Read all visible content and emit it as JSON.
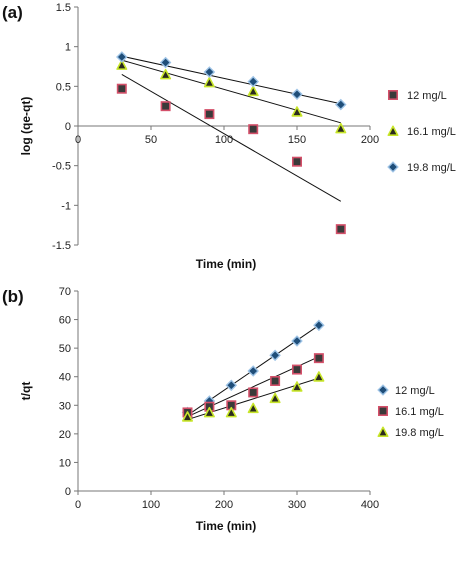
{
  "chart_data": [
    {
      "panel": "(a)",
      "type": "scatter",
      "xlabel": "Time (min)",
      "ylabel": "log (qe-qt)",
      "xlim": [
        0,
        200
      ],
      "ylim": [
        -1.5,
        1.5
      ],
      "xticks": [
        0,
        50,
        100,
        150,
        200
      ],
      "yticks": [
        1.5,
        1,
        0.5,
        0,
        -0.5,
        -1,
        -1.5
      ],
      "grid": false,
      "legend_position": "right",
      "series": [
        {
          "name": "12 mg/L",
          "marker": "square",
          "color": "#3a3a3a",
          "edge": "#d4506a",
          "points": [
            [
              30,
              0.47
            ],
            [
              60,
              0.25
            ],
            [
              90,
              0.15
            ],
            [
              120,
              -0.04
            ],
            [
              150,
              -0.45
            ],
            [
              180,
              -1.3
            ]
          ],
          "trend": [
            [
              30,
              0.65
            ],
            [
              180,
              -0.95
            ]
          ]
        },
        {
          "name": "16.1 mg/L",
          "marker": "triangle",
          "color": "#2b2b1e",
          "edge": "#c8e62a",
          "points": [
            [
              30,
              0.77
            ],
            [
              60,
              0.65
            ],
            [
              90,
              0.55
            ],
            [
              120,
              0.44
            ],
            [
              150,
              0.18
            ],
            [
              180,
              -0.03
            ]
          ],
          "trend": [
            [
              30,
              0.83
            ],
            [
              180,
              0.04
            ]
          ]
        },
        {
          "name": "19.8 mg/L",
          "marker": "diamond",
          "color": "#1f4e79",
          "edge": "#9dc3e6",
          "points": [
            [
              30,
              0.87
            ],
            [
              60,
              0.8
            ],
            [
              90,
              0.68
            ],
            [
              120,
              0.56
            ],
            [
              150,
              0.4
            ],
            [
              180,
              0.27
            ]
          ],
          "trend": [
            [
              30,
              0.88
            ],
            [
              180,
              0.28
            ]
          ]
        }
      ]
    },
    {
      "panel": "(b)",
      "type": "scatter",
      "xlabel": "Time (min)",
      "ylabel": "t/qt",
      "xlim": [
        0,
        400
      ],
      "ylim": [
        0,
        70
      ],
      "xticks": [
        0,
        100,
        200,
        300,
        400
      ],
      "yticks": [
        70,
        60,
        50,
        40,
        30,
        20,
        10,
        0
      ],
      "grid": false,
      "legend_position": "right",
      "series": [
        {
          "name": "12 mg/L",
          "marker": "diamond",
          "color": "#1f4e79",
          "edge": "#9dc3e6",
          "points": [
            [
              150,
              27.5
            ],
            [
              180,
              31.5
            ],
            [
              210,
              37
            ],
            [
              240,
              42
            ],
            [
              270,
              47.5
            ],
            [
              300,
              52.5
            ],
            [
              330,
              58
            ]
          ],
          "trend": [
            [
              150,
              26.5
            ],
            [
              330,
              58
            ]
          ]
        },
        {
          "name": "16.1 mg/L",
          "marker": "square",
          "color": "#3a3a3a",
          "edge": "#d4506a",
          "points": [
            [
              150,
              27.5
            ],
            [
              180,
              29.5
            ],
            [
              210,
              30
            ],
            [
              240,
              34.5
            ],
            [
              270,
              38.5
            ],
            [
              300,
              42.5
            ],
            [
              330,
              46.5
            ]
          ],
          "trend": [
            [
              150,
              26
            ],
            [
              330,
              47
            ]
          ]
        },
        {
          "name": "19.8 mg/L",
          "marker": "triangle",
          "color": "#2b2b1e",
          "edge": "#c8e62a",
          "points": [
            [
              150,
              26
            ],
            [
              180,
              27.5
            ],
            [
              210,
              27.5
            ],
            [
              240,
              29
            ],
            [
              270,
              32.5
            ],
            [
              300,
              36.5
            ],
            [
              330,
              40
            ]
          ],
          "trend": [
            [
              150,
              25
            ],
            [
              330,
              39.5
            ]
          ]
        }
      ]
    }
  ]
}
